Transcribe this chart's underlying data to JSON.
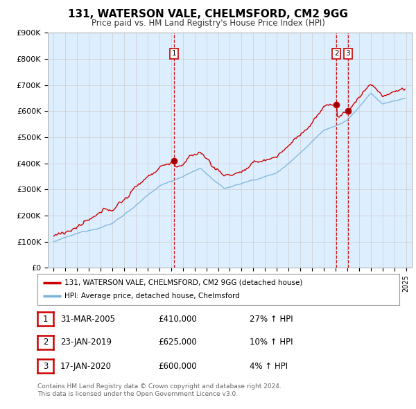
{
  "title": "131, WATERSON VALE, CHELMSFORD, CM2 9GG",
  "subtitle": "Price paid vs. HM Land Registry's House Price Index (HPI)",
  "ylim": [
    0,
    900000
  ],
  "yticks": [
    0,
    100000,
    200000,
    300000,
    400000,
    500000,
    600000,
    700000,
    800000,
    900000
  ],
  "ytick_labels": [
    "£0",
    "£100K",
    "£200K",
    "£300K",
    "£400K",
    "£500K",
    "£600K",
    "£700K",
    "£800K",
    "£900K"
  ],
  "hpi_color": "#7ab4d8",
  "price_color": "#cc0000",
  "vline_color": "#cc0000",
  "plot_bg_color": "#ddeeff",
  "transactions": [
    {
      "date": 2005.25,
      "price": 410000,
      "label": "1"
    },
    {
      "date": 2019.07,
      "price": 625000,
      "label": "2"
    },
    {
      "date": 2020.05,
      "price": 600000,
      "label": "3"
    }
  ],
  "legend_entries": [
    {
      "label": "131, WATERSON VALE, CHELMSFORD, CM2 9GG (detached house)",
      "color": "#cc0000"
    },
    {
      "label": "HPI: Average price, detached house, Chelmsford",
      "color": "#7ab4d8"
    }
  ],
  "table_rows": [
    {
      "num": "1",
      "date": "31-MAR-2005",
      "price": "£410,000",
      "change": "27% ↑ HPI"
    },
    {
      "num": "2",
      "date": "23-JAN-2019",
      "price": "£625,000",
      "change": "10% ↑ HPI"
    },
    {
      "num": "3",
      "date": "17-JAN-2020",
      "price": "£600,000",
      "change": "4% ↑ HPI"
    }
  ],
  "footer": "Contains HM Land Registry data © Crown copyright and database right 2024.\nThis data is licensed under the Open Government Licence v3.0.",
  "background_color": "#ffffff",
  "grid_color": "#cccccc"
}
